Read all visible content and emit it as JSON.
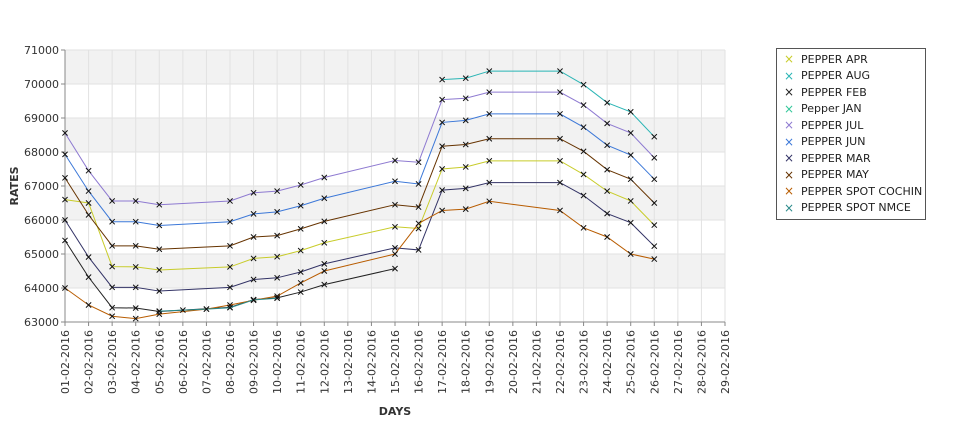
{
  "chart_data": {
    "type": "line",
    "xlabel": "DAYS",
    "ylabel": "RATES",
    "ylim": [
      63000,
      71000
    ],
    "yticks": [
      "63000",
      "64000",
      "65000",
      "66000",
      "67000",
      "68000",
      "69000",
      "70000",
      "71000"
    ],
    "x": [
      "01-02-2016",
      "02-02-2016",
      "03-02-2016",
      "04-02-2016",
      "05-02-2016",
      "06-02-2016",
      "07-02-2016",
      "08-02-2016",
      "09-02-2016",
      "10-02-2016",
      "11-02-2016",
      "12-02-2016",
      "13-02-2016",
      "14-02-2016",
      "15-02-2016",
      "16-02-2016",
      "17-02-2016",
      "18-02-2016",
      "19-02-2016",
      "20-02-2016",
      "21-02-2016",
      "22-02-2016",
      "23-02-2016",
      "24-02-2016",
      "25-02-2016",
      "26-02-2016",
      "27-02-2016",
      "28-02-2016",
      "29-02-2016"
    ],
    "grid": true,
    "legend_position": "right",
    "series": [
      {
        "name": "PEPPER APR",
        "color": "#c8cc2a",
        "points": [
          [
            "01-02-2016",
            66600
          ],
          [
            "02-02-2016",
            66500
          ],
          [
            "03-02-2016",
            64630
          ],
          [
            "04-02-2016",
            64620
          ],
          [
            "05-02-2016",
            64530
          ],
          [
            "08-02-2016",
            64620
          ],
          [
            "09-02-2016",
            64870
          ],
          [
            "10-02-2016",
            64920
          ],
          [
            "11-02-2016",
            65100
          ],
          [
            "12-02-2016",
            65330
          ],
          [
            "15-02-2016",
            65800
          ],
          [
            "16-02-2016",
            65750
          ],
          [
            "17-02-2016",
            67500
          ],
          [
            "18-02-2016",
            67560
          ],
          [
            "19-02-2016",
            67740
          ],
          [
            "22-02-2016",
            67740
          ],
          [
            "23-02-2016",
            67340
          ],
          [
            "24-02-2016",
            66850
          ],
          [
            "25-02-2016",
            66560
          ],
          [
            "26-02-2016",
            65850
          ]
        ]
      },
      {
        "name": "PEPPER AUG",
        "color": "#2ab5b5",
        "points": [
          [
            "17-02-2016",
            70130
          ],
          [
            "18-02-2016",
            70170
          ],
          [
            "19-02-2016",
            70380
          ],
          [
            "22-02-2016",
            70380
          ],
          [
            "23-02-2016",
            69980
          ],
          [
            "24-02-2016",
            69450
          ],
          [
            "25-02-2016",
            69180
          ],
          [
            "26-02-2016",
            68450
          ]
        ]
      },
      {
        "name": "PEPPER FEB",
        "color": "#222222",
        "points": [
          [
            "01-02-2016",
            65400
          ],
          [
            "02-02-2016",
            64320
          ],
          [
            "03-02-2016",
            63420
          ],
          [
            "04-02-2016",
            63410
          ],
          [
            "05-02-2016",
            63310
          ],
          [
            "08-02-2016",
            63430
          ],
          [
            "09-02-2016",
            63660
          ],
          [
            "10-02-2016",
            63710
          ],
          [
            "11-02-2016",
            63880
          ],
          [
            "12-02-2016",
            64100
          ],
          [
            "15-02-2016",
            64570
          ]
        ]
      },
      {
        "name": "Pepper JAN",
        "color": "#33c79a",
        "points": []
      },
      {
        "name": "PEPPER JUL",
        "color": "#8e7ad1",
        "points": [
          [
            "01-02-2016",
            68560
          ],
          [
            "02-02-2016",
            67450
          ],
          [
            "03-02-2016",
            66560
          ],
          [
            "04-02-2016",
            66560
          ],
          [
            "05-02-2016",
            66450
          ],
          [
            "08-02-2016",
            66560
          ],
          [
            "09-02-2016",
            66800
          ],
          [
            "10-02-2016",
            66850
          ],
          [
            "11-02-2016",
            67030
          ],
          [
            "12-02-2016",
            67250
          ],
          [
            "15-02-2016",
            67750
          ],
          [
            "16-02-2016",
            67700
          ],
          [
            "17-02-2016",
            69540
          ],
          [
            "18-02-2016",
            69580
          ],
          [
            "19-02-2016",
            69760
          ],
          [
            "22-02-2016",
            69760
          ],
          [
            "23-02-2016",
            69380
          ],
          [
            "24-02-2016",
            68840
          ],
          [
            "25-02-2016",
            68560
          ],
          [
            "26-02-2016",
            67830
          ]
        ]
      },
      {
        "name": "PEPPER JUN",
        "color": "#3c78d8",
        "points": [
          [
            "01-02-2016",
            67930
          ],
          [
            "02-02-2016",
            66850
          ],
          [
            "03-02-2016",
            65950
          ],
          [
            "04-02-2016",
            65950
          ],
          [
            "05-02-2016",
            65840
          ],
          [
            "08-02-2016",
            65950
          ],
          [
            "09-02-2016",
            66180
          ],
          [
            "10-02-2016",
            66240
          ],
          [
            "11-02-2016",
            66420
          ],
          [
            "12-02-2016",
            66640
          ],
          [
            "15-02-2016",
            67140
          ],
          [
            "16-02-2016",
            67060
          ],
          [
            "17-02-2016",
            68870
          ],
          [
            "18-02-2016",
            68930
          ],
          [
            "19-02-2016",
            69120
          ],
          [
            "22-02-2016",
            69120
          ],
          [
            "23-02-2016",
            68730
          ],
          [
            "24-02-2016",
            68200
          ],
          [
            "25-02-2016",
            67910
          ],
          [
            "26-02-2016",
            67200
          ]
        ]
      },
      {
        "name": "PEPPER MAR",
        "color": "#333366",
        "points": [
          [
            "01-02-2016",
            66000
          ],
          [
            "02-02-2016",
            64910
          ],
          [
            "03-02-2016",
            64020
          ],
          [
            "04-02-2016",
            64020
          ],
          [
            "05-02-2016",
            63910
          ],
          [
            "08-02-2016",
            64020
          ],
          [
            "09-02-2016",
            64250
          ],
          [
            "10-02-2016",
            64300
          ],
          [
            "11-02-2016",
            64470
          ],
          [
            "12-02-2016",
            64710
          ],
          [
            "15-02-2016",
            65180
          ],
          [
            "16-02-2016",
            65120
          ],
          [
            "17-02-2016",
            66880
          ],
          [
            "18-02-2016",
            66930
          ],
          [
            "19-02-2016",
            67100
          ],
          [
            "22-02-2016",
            67100
          ],
          [
            "23-02-2016",
            66720
          ],
          [
            "24-02-2016",
            66190
          ],
          [
            "25-02-2016",
            65920
          ],
          [
            "26-02-2016",
            65230
          ]
        ]
      },
      {
        "name": "PEPPER MAY",
        "color": "#663300",
        "points": [
          [
            "01-02-2016",
            67240
          ],
          [
            "02-02-2016",
            66150
          ],
          [
            "03-02-2016",
            65240
          ],
          [
            "04-02-2016",
            65240
          ],
          [
            "05-02-2016",
            65140
          ],
          [
            "08-02-2016",
            65240
          ],
          [
            "09-02-2016",
            65500
          ],
          [
            "10-02-2016",
            65540
          ],
          [
            "11-02-2016",
            65740
          ],
          [
            "12-02-2016",
            65960
          ],
          [
            "15-02-2016",
            66450
          ],
          [
            "16-02-2016",
            66380
          ],
          [
            "17-02-2016",
            68170
          ],
          [
            "18-02-2016",
            68220
          ],
          [
            "19-02-2016",
            68390
          ],
          [
            "22-02-2016",
            68390
          ],
          [
            "23-02-2016",
            68020
          ],
          [
            "24-02-2016",
            67480
          ],
          [
            "25-02-2016",
            67200
          ],
          [
            "26-02-2016",
            66500
          ]
        ]
      },
      {
        "name": "PEPPER SPOT COCHIN",
        "color": "#b85c00",
        "points": [
          [
            "01-02-2016",
            64000
          ],
          [
            "02-02-2016",
            63500
          ],
          [
            "03-02-2016",
            63170
          ],
          [
            "04-02-2016",
            63100
          ],
          [
            "05-02-2016",
            63230
          ],
          [
            "07-02-2016",
            63380
          ],
          [
            "08-02-2016",
            63500
          ],
          [
            "09-02-2016",
            63640
          ],
          [
            "10-02-2016",
            63760
          ],
          [
            "11-02-2016",
            64150
          ],
          [
            "12-02-2016",
            64500
          ],
          [
            "15-02-2016",
            65000
          ],
          [
            "16-02-2016",
            65900
          ],
          [
            "17-02-2016",
            66280
          ],
          [
            "18-02-2016",
            66320
          ],
          [
            "19-02-2016",
            66550
          ],
          [
            "22-02-2016",
            66280
          ],
          [
            "23-02-2016",
            65770
          ],
          [
            "24-02-2016",
            65500
          ],
          [
            "25-02-2016",
            65000
          ],
          [
            "26-02-2016",
            64850
          ]
        ]
      },
      {
        "name": "PEPPER SPOT NMCE",
        "color": "#2a8a8a",
        "points": [
          [
            "05-02-2016",
            63320
          ],
          [
            "06-02-2016",
            63350
          ],
          [
            "07-02-2016",
            63380
          ],
          [
            "08-02-2016",
            63420
          ],
          [
            "09-02-2016",
            63650
          ],
          [
            "10-02-2016",
            63700
          ]
        ]
      }
    ]
  }
}
